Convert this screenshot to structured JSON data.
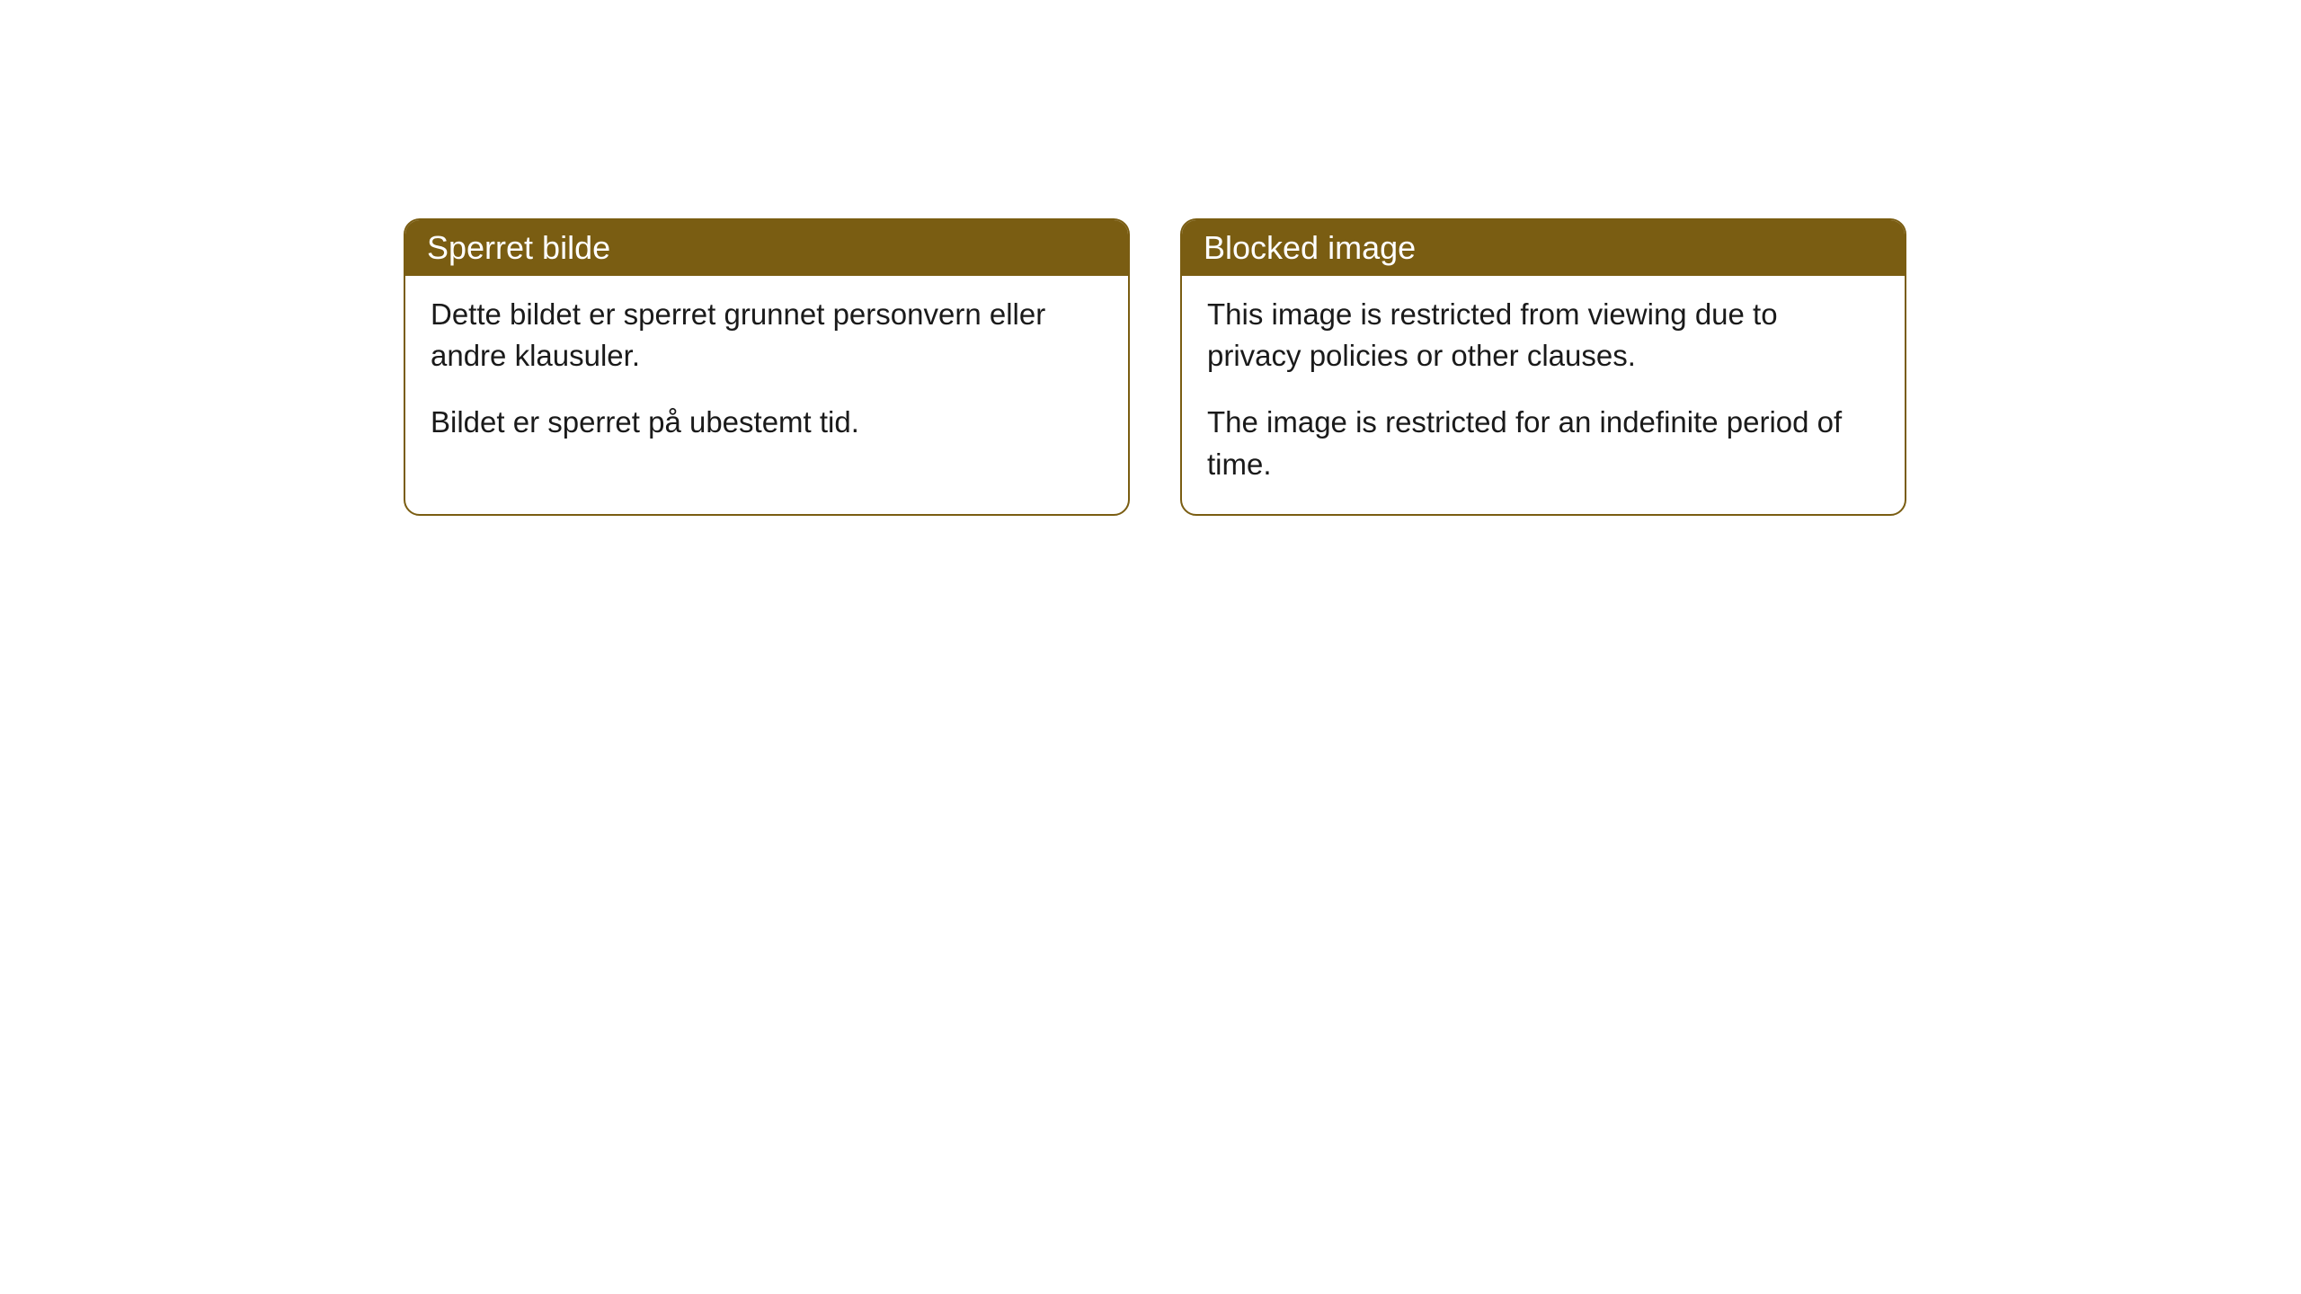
{
  "cards": [
    {
      "title": "Sperret bilde",
      "paragraph1": "Dette bildet er sperret grunnet personvern eller andre klausuler.",
      "paragraph2": "Bildet er sperret på ubestemt tid."
    },
    {
      "title": "Blocked image",
      "paragraph1": "This image is restricted from viewing due to privacy policies or other clauses.",
      "paragraph2": "The image is restricted for an indefinite period of time."
    }
  ],
  "styling": {
    "header_background": "#7a5d12",
    "header_text_color": "#ffffff",
    "border_color": "#7a5d12",
    "body_background": "#ffffff",
    "body_text_color": "#1a1a1a",
    "border_radius": 18,
    "title_fontsize": 36,
    "body_fontsize": 33
  }
}
